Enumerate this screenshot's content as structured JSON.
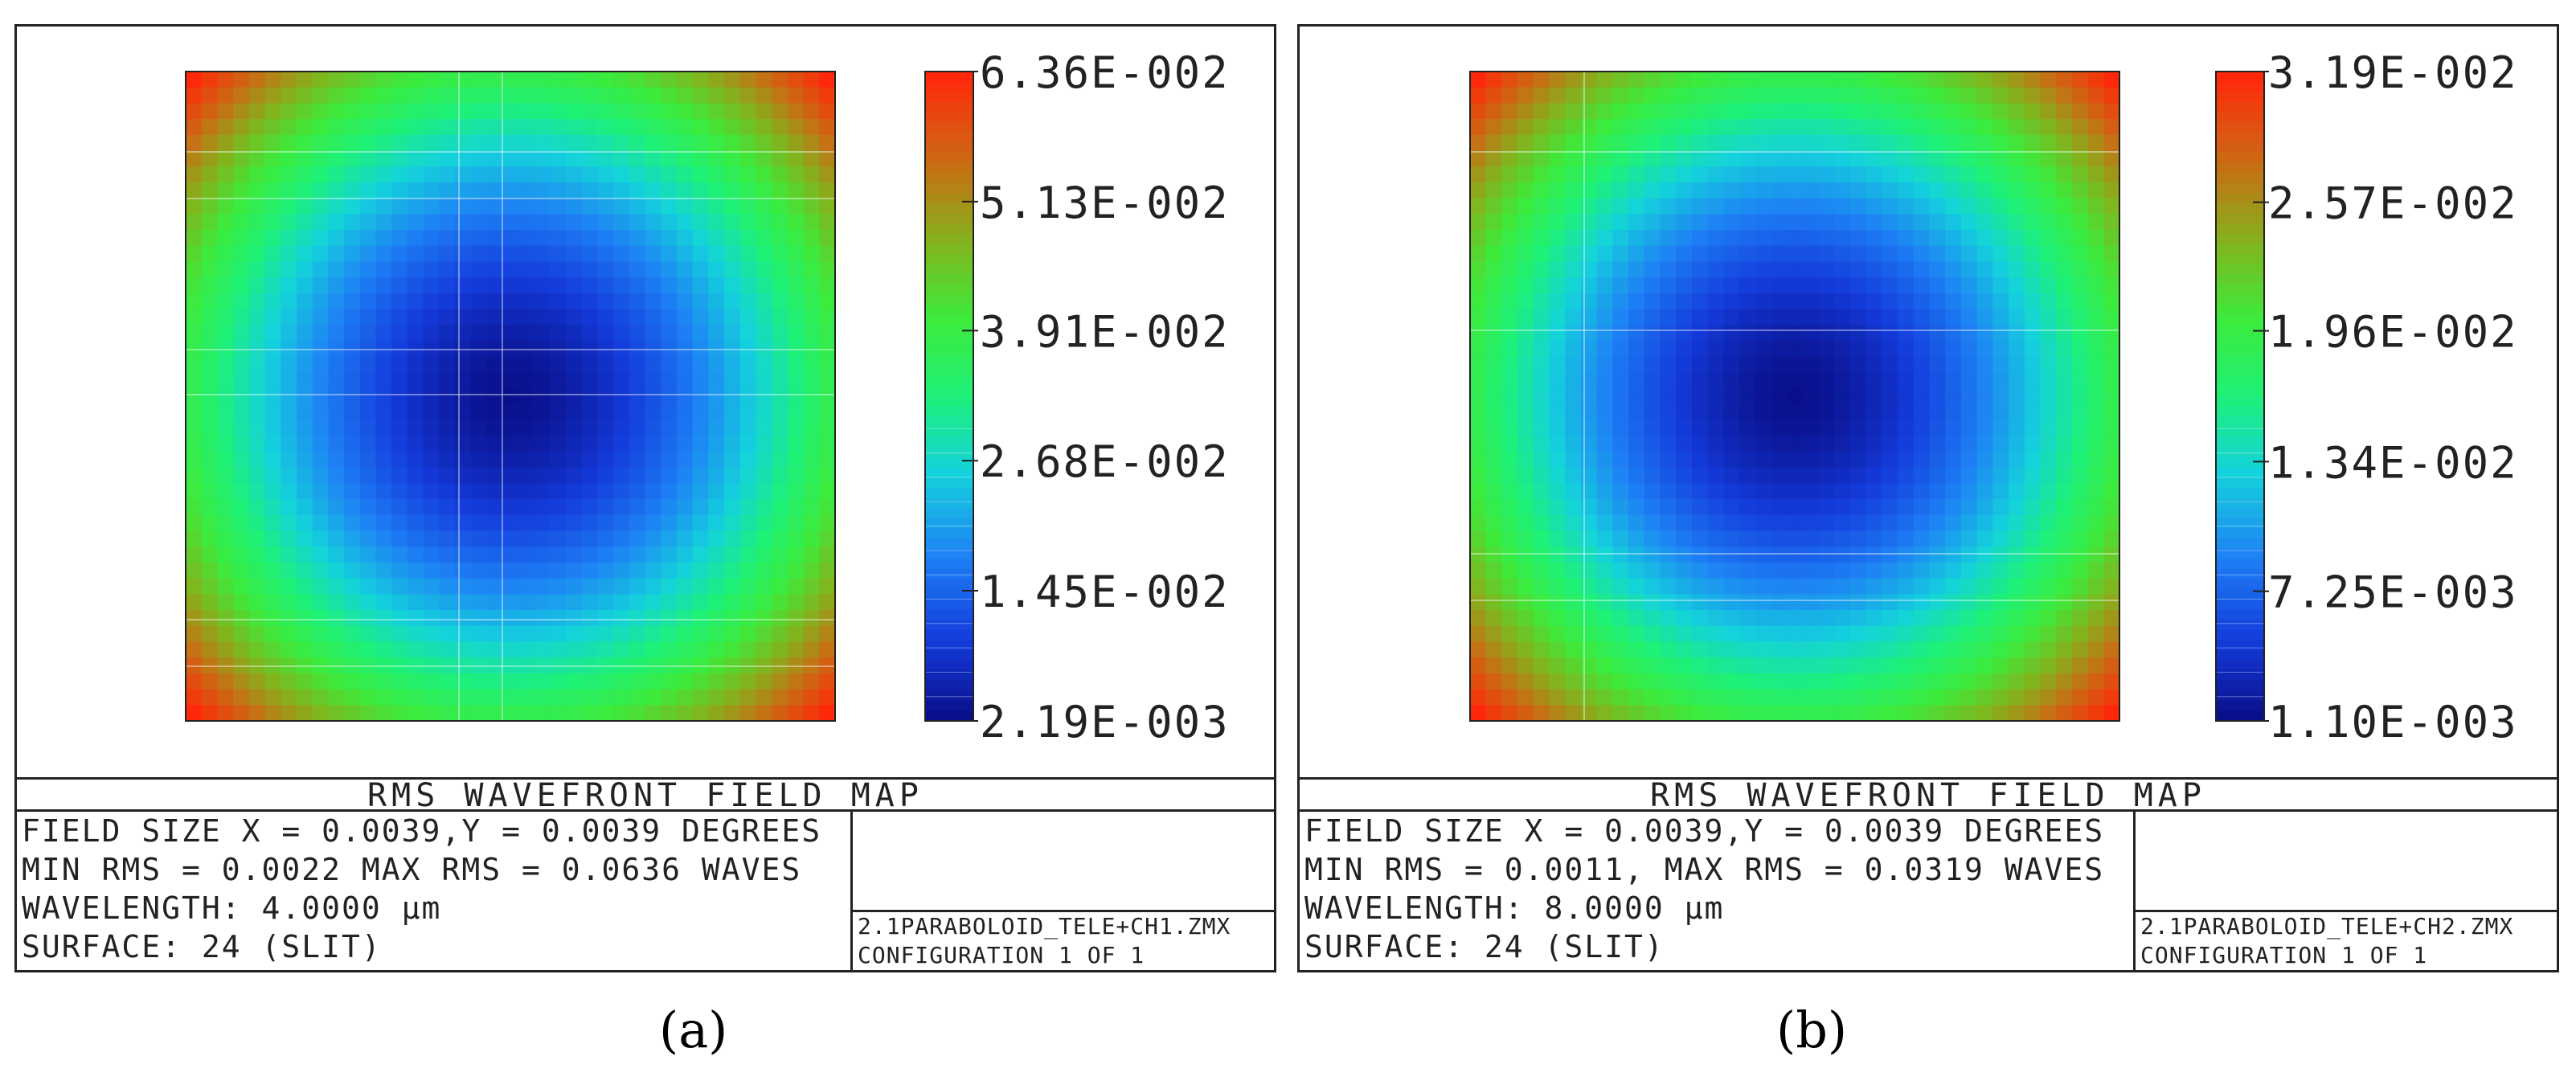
{
  "chart_data": [
    {
      "type": "heatmap",
      "colorbar_ticks": [
        "6.36E-002",
        "5.13E-002",
        "3.91E-002",
        "2.68E-002",
        "1.45E-002",
        "2.19E-003"
      ],
      "colorbar_range": [
        0.00219,
        0.0636
      ],
      "grid": true,
      "footer": {
        "title": "RMS WAVEFRONT FIELD MAP",
        "field_size": "FIELD SIZE X = 0.0039,Y = 0.0039 DEGREES",
        "min_max": "MIN RMS = 0.0022 MAX RMS = 0.0636 WAVES",
        "wavelength": "WAVELENGTH: 4.0000 µm",
        "surface": "SURFACE: 24 (SLIT)",
        "file": "2.1PARABOLOID_TELE+CH1.ZMX",
        "config": "CONFIGURATION 1 OF 1"
      },
      "caption": "(a)"
    },
    {
      "type": "heatmap",
      "colorbar_ticks": [
        "3.19E-002",
        "2.57E-002",
        "1.96E-002",
        "1.34E-002",
        "7.25E-003",
        "1.10E-003"
      ],
      "colorbar_range": [
        0.0011,
        0.0319
      ],
      "grid": true,
      "footer": {
        "title": "RMS WAVEFRONT FIELD MAP",
        "field_size": "FIELD SIZE X = 0.0039,Y = 0.0039 DEGREES",
        "min_max": "MIN RMS = 0.0011, MAX RMS = 0.0319 WAVES",
        "wavelength": "WAVELENGTH: 8.0000 µm",
        "surface": "SURFACE: 24 (SLIT)",
        "file": "2.1PARABOLOID_TELE+CH2.ZMX",
        "config": "CONFIGURATION 1 OF 1"
      },
      "caption": "(b)"
    }
  ]
}
